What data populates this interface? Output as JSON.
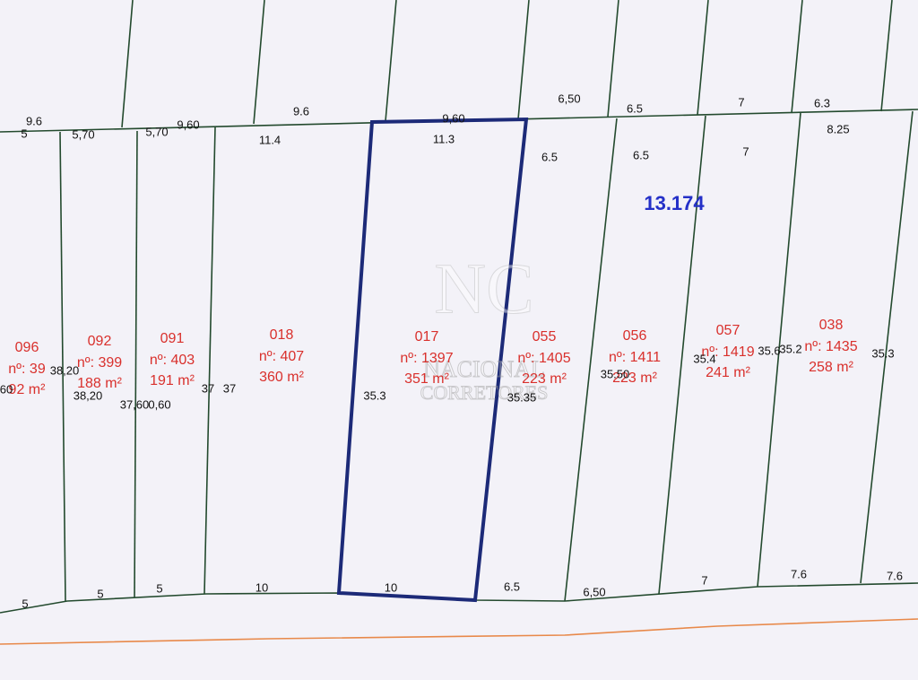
{
  "block_label": "13.174",
  "watermark": {
    "logo": "NC",
    "line1": "NACIONAL",
    "line2": "CORRETORES"
  },
  "lots": [
    {
      "code": "096",
      "number": "nº: 39",
      "area": "92 m²"
    },
    {
      "code": "092",
      "number": "nº: 399",
      "area": "188 m²"
    },
    {
      "code": "091",
      "number": "nº: 403",
      "area": "191 m²"
    },
    {
      "code": "018",
      "number": "nº: 407",
      "area": "360 m²"
    },
    {
      "code": "017",
      "number": "nº: 1397",
      "area": "351 m²"
    },
    {
      "code": "055",
      "number": "nº: 1405",
      "area": "223 m²"
    },
    {
      "code": "056",
      "number": "nº: 1411",
      "area": "223 m²"
    },
    {
      "code": "057",
      "number": "nº: 1419",
      "area": "241 m²"
    },
    {
      "code": "038",
      "number": "nº: 1435",
      "area": "258 m²"
    }
  ],
  "dimensions": [
    "9.6",
    "5",
    "5,70",
    "5,70",
    "9,60",
    "9.6",
    "11.4",
    "9,60",
    "11.3",
    "6,50",
    "6.5",
    "7",
    "6.3",
    "8.25",
    "6.5",
    "6.5",
    "7",
    "38,20",
    "60",
    "38,20",
    "37,60",
    "0,60",
    "37",
    "37",
    "35.3",
    "35.35",
    "35.50",
    "35.4",
    "35.6",
    "35.2",
    "35.3",
    "5",
    "5",
    "5",
    "10",
    "10",
    "6.5",
    "6,50",
    "7",
    "7.6",
    "7.6"
  ]
}
